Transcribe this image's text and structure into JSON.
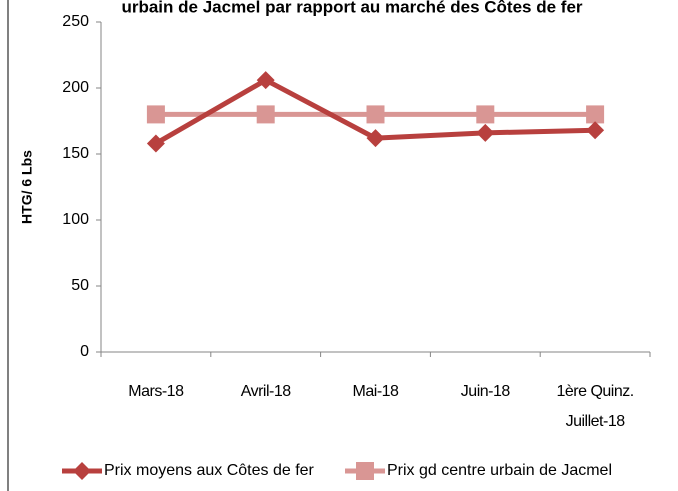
{
  "chart_data": {
    "type": "line",
    "title": "urbain de Jacmel par rapport au marché des Côtes de fer",
    "y_label": "HTG/ 6 Lbs",
    "categories": [
      "Mars-18",
      "Avril-18",
      "Mai-18",
      "Juin-18",
      "1ère Quinz. Juillet-18"
    ],
    "series": [
      {
        "name": "Prix moyens aux Côtes de fer",
        "color": "#b8403e",
        "marker": "diamond",
        "values": [
          158,
          206,
          162,
          166,
          168
        ]
      },
      {
        "name": "Prix gd centre urbain de Jacmel",
        "color": "#d99694",
        "marker": "square",
        "values": [
          180,
          180,
          180,
          180,
          180
        ]
      }
    ],
    "ylim": [
      0,
      250
    ],
    "yticks": [
      0,
      50,
      100,
      150,
      200,
      250
    ],
    "grid": false,
    "legend": "bottom"
  }
}
